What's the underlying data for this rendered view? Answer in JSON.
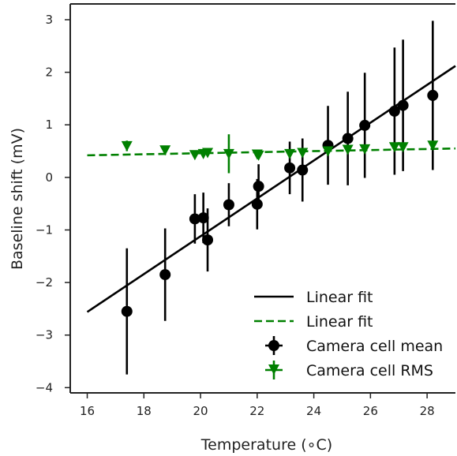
{
  "chart_data": {
    "type": "scatter",
    "xlabel": "Temperature (∘C)",
    "ylabel": "Baseline shift (mV)",
    "xlim": [
      15.4,
      29.0
    ],
    "ylim": [
      -4.1,
      3.3
    ],
    "x_ticks": [
      16,
      18,
      20,
      22,
      24,
      26,
      28
    ],
    "y_ticks": [
      -4,
      -3,
      -2,
      -1,
      0,
      1,
      2,
      3
    ],
    "x_tick_labels": [
      "16",
      "18",
      "20",
      "22",
      "24",
      "26",
      "28"
    ],
    "y_tick_labels": [
      "−4",
      "−3",
      "−2",
      "−1",
      "0",
      "1",
      "2",
      "3"
    ],
    "grid": false,
    "legend_position": "bottom-right",
    "series": [
      {
        "name": "Camera cell mean",
        "kind": "errorbar",
        "marker": "circle",
        "color": "#000000",
        "x": [
          17.4,
          18.75,
          19.8,
          20.1,
          20.25,
          21.0,
          22.0,
          22.05,
          23.15,
          23.6,
          24.5,
          25.2,
          25.8,
          26.85,
          27.15,
          28.2
        ],
        "y": [
          -2.55,
          -1.85,
          -0.79,
          -0.77,
          -1.19,
          -0.52,
          -0.51,
          -0.17,
          0.18,
          0.14,
          0.61,
          0.74,
          0.99,
          1.26,
          1.37,
          1.56
        ],
        "yerr": [
          1.2,
          0.88,
          0.47,
          0.48,
          0.6,
          0.41,
          0.48,
          0.42,
          0.5,
          0.6,
          0.75,
          0.89,
          1.0,
          1.21,
          1.25,
          1.42
        ]
      },
      {
        "name": "Camera cell RMS",
        "kind": "errorbar",
        "marker": "triangle-down",
        "color": "#008000",
        "x": [
          17.4,
          18.75,
          19.8,
          20.1,
          20.25,
          21.0,
          22.0,
          22.05,
          23.15,
          23.6,
          24.5,
          25.2,
          25.8,
          26.85,
          27.15,
          28.2
        ],
        "y": [
          0.6,
          0.52,
          0.43,
          0.45,
          0.47,
          0.45,
          0.44,
          0.42,
          0.45,
          0.47,
          0.5,
          0.53,
          0.54,
          0.58,
          0.58,
          0.61
        ],
        "yerr": [
          0.1,
          0.05,
          0.05,
          0.04,
          0.05,
          0.37,
          0.05,
          0.05,
          0.04,
          0.05,
          0.05,
          0.05,
          0.05,
          0.05,
          0.05,
          0.05
        ]
      },
      {
        "name": "Linear fit",
        "kind": "line",
        "style": "solid",
        "color": "#000000",
        "x": [
          16.0,
          29.0
        ],
        "y": [
          -2.56,
          2.12
        ]
      },
      {
        "name": "Linear fit",
        "kind": "line",
        "style": "dashed",
        "color": "#008000",
        "x": [
          16.0,
          29.0
        ],
        "y": [
          0.42,
          0.55
        ]
      }
    ],
    "legend": [
      {
        "label": "Linear fit",
        "type": "line-solid",
        "color": "#000000"
      },
      {
        "label": "Linear fit",
        "type": "line-dashed",
        "color": "#008000"
      },
      {
        "label": "Camera cell mean",
        "type": "errorbar-circle",
        "color": "#000000"
      },
      {
        "label": "Camera cell RMS",
        "type": "errorbar-triangle",
        "color": "#008000"
      }
    ]
  }
}
